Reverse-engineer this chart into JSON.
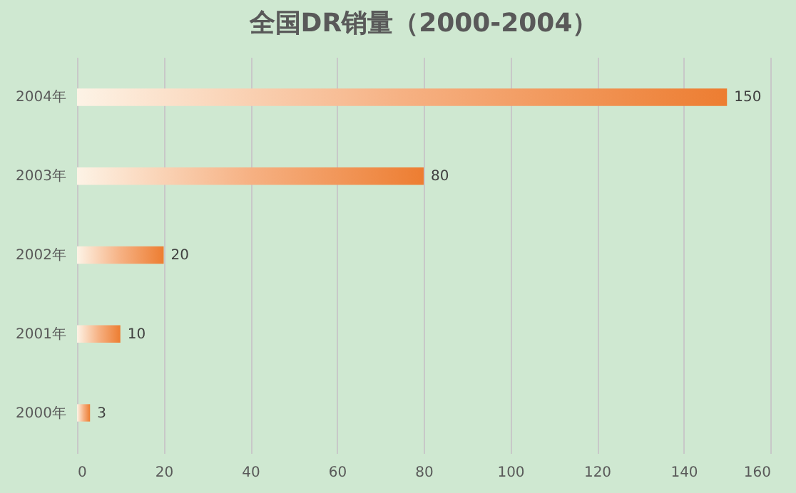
{
  "chart_data": {
    "type": "bar",
    "orientation": "horizontal",
    "title": "全国DR销量（2000-2004）",
    "categories": [
      "2004年",
      "2003年",
      "2002年",
      "2001年",
      "2000年"
    ],
    "values": [
      150,
      80,
      20,
      10,
      3
    ],
    "color": "#ed7d31",
    "xlim": [
      0,
      160
    ],
    "xticks": [
      0,
      20,
      40,
      60,
      80,
      100,
      120,
      140,
      160
    ],
    "grid": "x",
    "data_labels": true
  }
}
